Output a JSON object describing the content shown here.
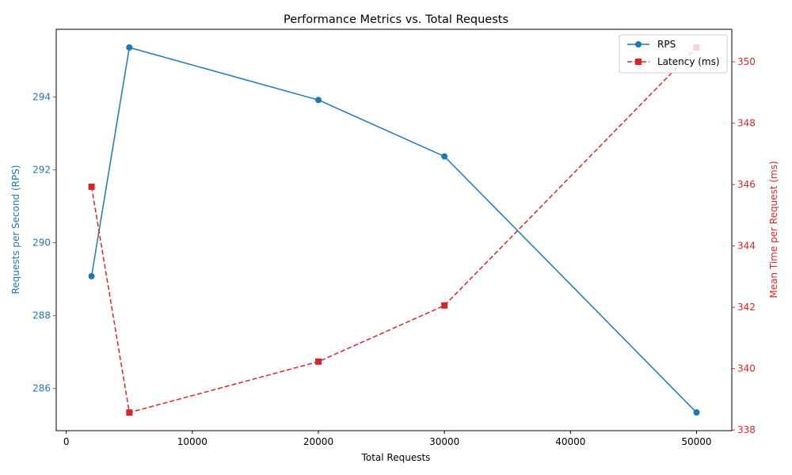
{
  "chart_data": {
    "type": "line",
    "title": "Performance Metrics vs. Total Requests",
    "xlabel": "Total Requests",
    "ylabel_left": "Requests per Second (RPS)",
    "ylabel_right": "Mean Time per Request (ms)",
    "x": [
      2000,
      5000,
      20000,
      30000,
      50000
    ],
    "xlim": [
      -800,
      52800
    ],
    "x_ticks": [
      0,
      10000,
      20000,
      30000,
      40000,
      50000
    ],
    "series": [
      {
        "name": "RPS",
        "axis": "left",
        "values": [
          289.08,
          295.36,
          293.92,
          292.37,
          285.34
        ],
        "color": "#1f77b4",
        "marker": "circle",
        "line_style": "solid"
      },
      {
        "name": "Latency (ms)",
        "axis": "right",
        "values": [
          345.93,
          338.57,
          340.23,
          342.06,
          350.47
        ],
        "color": "#d62728",
        "marker": "square",
        "line_style": "dashed"
      }
    ],
    "ylim_left": [
      284.84,
      295.86
    ],
    "y_ticks_left": [
      286,
      288,
      290,
      292,
      294
    ],
    "ylim_right": [
      337.98,
      351.06
    ],
    "y_ticks_right": [
      338,
      340,
      342,
      344,
      346,
      348,
      350
    ],
    "legend_position": "upper right",
    "grid": false
  }
}
